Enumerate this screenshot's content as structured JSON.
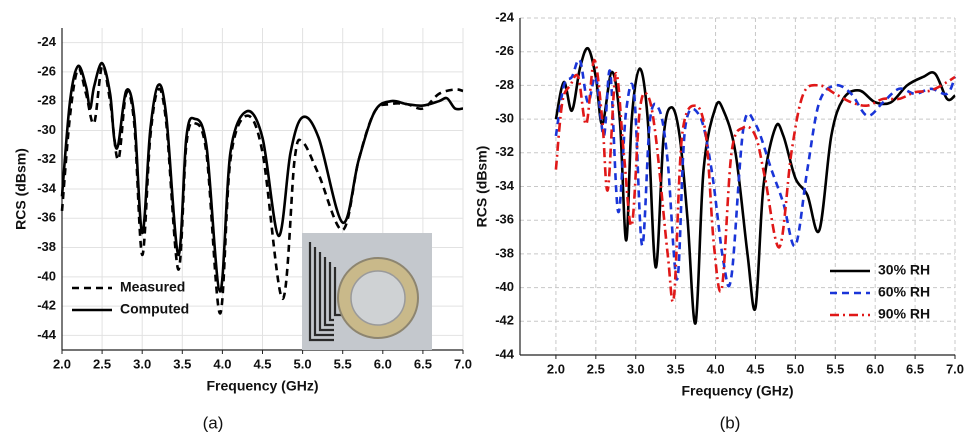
{
  "chart_data": [
    {
      "type": "line",
      "xlabel": "Frequency (GHz)",
      "ylabel": "RCS (dBsm)",
      "caption": "(a)",
      "xlim": [
        2,
        7
      ],
      "ylim": [
        -45,
        -23
      ],
      "grid": true,
      "legend": "lower left",
      "xticks": [
        {
          "value": 2,
          "label": "2.0"
        },
        {
          "value": 2.5,
          "label": "2.5"
        },
        {
          "value": 3,
          "label": "3.0"
        },
        {
          "value": 3.5,
          "label": "3.5"
        },
        {
          "value": 4,
          "label": "4.0"
        },
        {
          "value": 4.5,
          "label": "4.5"
        },
        {
          "value": 5,
          "label": "5.0"
        },
        {
          "value": 5.5,
          "label": "5.5"
        },
        {
          "value": 6,
          "label": "6.0"
        },
        {
          "value": 6.5,
          "label": "6.5"
        },
        {
          "value": 7,
          "label": "7.0"
        }
      ],
      "yticks": [
        -24,
        -26,
        -28,
        -30,
        -32,
        -34,
        -36,
        -38,
        -40,
        -42,
        -44
      ],
      "series": [
        {
          "name": "Measured",
          "color": "#000000",
          "linestyle": "dashed",
          "x": [
            2.0,
            2.1,
            2.2,
            2.3,
            2.4,
            2.5,
            2.6,
            2.7,
            2.8,
            2.9,
            3.0,
            3.1,
            3.2,
            3.3,
            3.45,
            3.55,
            3.65,
            3.8,
            3.97,
            4.1,
            4.3,
            4.5,
            4.75,
            4.9,
            5.0,
            5.2,
            5.5,
            5.7,
            5.9,
            6.1,
            6.3,
            6.5,
            6.7,
            6.9,
            7.0
          ],
          "values": [
            -35.5,
            -29,
            -25.8,
            -27.5,
            -29.5,
            -25.6,
            -28,
            -32,
            -27.5,
            -29.5,
            -38.5,
            -30.5,
            -27.2,
            -29.5,
            -39.5,
            -31,
            -29.5,
            -31.5,
            -42.5,
            -32,
            -29,
            -31.5,
            -41.5,
            -32,
            -30.8,
            -33,
            -36.8,
            -32,
            -28.7,
            -28.2,
            -28.2,
            -28.5,
            -27.5,
            -27.2,
            -27.3
          ]
        },
        {
          "name": "Computed",
          "color": "#000000",
          "linestyle": "solid",
          "x": [
            2.0,
            2.1,
            2.2,
            2.3,
            2.35,
            2.4,
            2.5,
            2.6,
            2.65,
            2.7,
            2.8,
            2.9,
            3.0,
            3.1,
            3.2,
            3.3,
            3.45,
            3.55,
            3.65,
            3.8,
            3.97,
            4.1,
            4.3,
            4.5,
            4.7,
            4.85,
            5.0,
            5.2,
            5.5,
            5.7,
            5.9,
            6.1,
            6.3,
            6.5,
            6.7,
            6.8,
            6.9,
            7.0
          ],
          "values": [
            -34.5,
            -28,
            -25.6,
            -27,
            -28.5,
            -27,
            -25.4,
            -27.5,
            -30.5,
            -31,
            -27.3,
            -29,
            -37,
            -30,
            -26.9,
            -29,
            -38.5,
            -30.5,
            -29.2,
            -31,
            -41,
            -31.5,
            -28.7,
            -30.5,
            -37.2,
            -31.5,
            -29.1,
            -30.5,
            -36.3,
            -32,
            -28.7,
            -28,
            -28.2,
            -28.3,
            -28,
            -27.8,
            -28.5,
            -28.5
          ]
        }
      ]
    },
    {
      "type": "line",
      "xlabel": "Frequency (GHz)",
      "ylabel": "RCS (dBsm)",
      "caption": "(b)",
      "xlim": [
        1.55,
        7
      ],
      "ylim": [
        -44,
        -24
      ],
      "grid": true,
      "legend": "lower right",
      "xticks": [
        {
          "value": 2,
          "label": "2.0"
        },
        {
          "value": 2.5,
          "label": "2.5"
        },
        {
          "value": 3,
          "label": "3.0"
        },
        {
          "value": 3.5,
          "label": "3.5"
        },
        {
          "value": 4,
          "label": "4.0"
        },
        {
          "value": 4.5,
          "label": "4.5"
        },
        {
          "value": 5,
          "label": "5.0"
        },
        {
          "value": 5.5,
          "label": "5.5"
        },
        {
          "value": 6,
          "label": "6.0"
        },
        {
          "value": 6.5,
          "label": "6.5"
        },
        {
          "value": 7,
          "label": "7.0"
        }
      ],
      "yticks": [
        -24,
        -26,
        -28,
        -30,
        -32,
        -34,
        -36,
        -38,
        -40,
        -42,
        -44
      ],
      "series": [
        {
          "name": "30% RH",
          "color": "#000000",
          "linestyle": "solid",
          "x": [
            2.0,
            2.1,
            2.2,
            2.3,
            2.4,
            2.5,
            2.58,
            2.7,
            2.8,
            2.88,
            2.95,
            3.05,
            3.15,
            3.25,
            3.35,
            3.45,
            3.55,
            3.65,
            3.75,
            3.85,
            4.0,
            4.1,
            4.25,
            4.4,
            4.5,
            4.6,
            4.75,
            4.85,
            5.0,
            5.15,
            5.3,
            5.45,
            5.6,
            5.8,
            6.0,
            6.2,
            6.4,
            6.6,
            6.75,
            6.9,
            7.0
          ],
          "values": [
            -30,
            -27.8,
            -29.5,
            -27,
            -25.8,
            -27.5,
            -30.3,
            -27.2,
            -30,
            -37.2,
            -30,
            -27,
            -30,
            -38.8,
            -31,
            -29.3,
            -31,
            -36,
            -42.1,
            -33,
            -29.3,
            -29.5,
            -32,
            -38,
            -41.2,
            -34,
            -30.5,
            -31,
            -33.5,
            -34.5,
            -36.6,
            -31,
            -28.8,
            -28.3,
            -29,
            -29,
            -28,
            -27.5,
            -27.3,
            -28.8,
            -28.6
          ]
        },
        {
          "name": "60% RH",
          "color": "#1a35d8",
          "linestyle": "dashed",
          "x": [
            2.0,
            2.1,
            2.2,
            2.3,
            2.4,
            2.5,
            2.6,
            2.68,
            2.78,
            2.88,
            2.98,
            3.08,
            3.18,
            3.3,
            3.4,
            3.52,
            3.62,
            3.8,
            3.95,
            4.1,
            4.2,
            4.35,
            4.5,
            4.7,
            4.85,
            5.0,
            5.15,
            5.3,
            5.5,
            5.7,
            5.9,
            6.1,
            6.3,
            6.5,
            6.7,
            6.9,
            7.0
          ],
          "values": [
            -31,
            -28,
            -27.5,
            -26.5,
            -29,
            -27.5,
            -31,
            -27.2,
            -35.5,
            -29.5,
            -28.5,
            -37.5,
            -30,
            -29.5,
            -32.5,
            -39.5,
            -30.5,
            -29.8,
            -33,
            -38.5,
            -39.3,
            -30.5,
            -30.3,
            -33,
            -35,
            -37.5,
            -33,
            -29,
            -28,
            -28.5,
            -29.8,
            -29,
            -28.2,
            -28.5,
            -28.2,
            -28.5,
            -27.5
          ]
        },
        {
          "name": "90% RH",
          "color": "#e01818",
          "linestyle": "dashdot",
          "x": [
            2.0,
            2.08,
            2.18,
            2.28,
            2.38,
            2.48,
            2.58,
            2.65,
            2.75,
            2.85,
            2.95,
            3.05,
            3.15,
            3.25,
            3.4,
            3.48,
            3.58,
            3.75,
            3.88,
            3.98,
            4.08,
            4.2,
            4.35,
            4.5,
            4.62,
            4.8,
            4.95,
            5.1,
            5.3,
            5.5,
            5.7,
            5.9,
            6.1,
            6.3,
            6.5,
            6.7,
            6.9,
            7.0
          ],
          "values": [
            -33,
            -29,
            -28,
            -27.5,
            -30.3,
            -26.5,
            -30,
            -34.2,
            -27.3,
            -32,
            -36.3,
            -29.5,
            -28.6,
            -31,
            -38,
            -40.5,
            -31,
            -29.2,
            -31,
            -37.5,
            -40,
            -32,
            -30.5,
            -31,
            -33.5,
            -37.6,
            -32,
            -28.5,
            -28,
            -28.5,
            -29,
            -29.2,
            -28.8,
            -28.8,
            -28.4,
            -28.3,
            -27.8,
            -27.5
          ]
        }
      ]
    }
  ]
}
